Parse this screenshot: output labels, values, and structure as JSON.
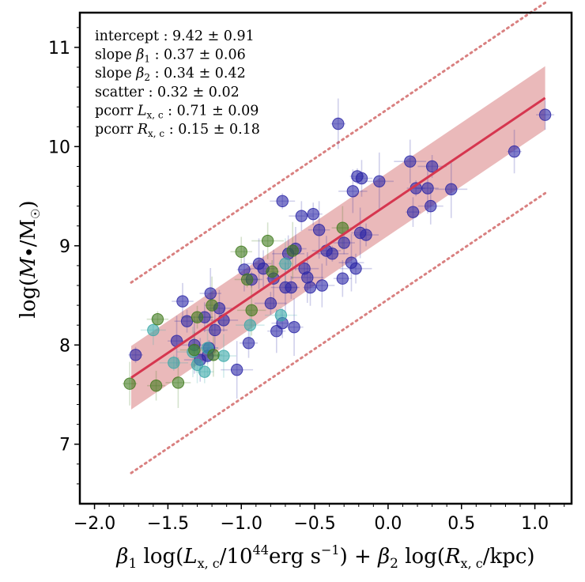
{
  "chart_data": {
    "type": "scatter",
    "title": "",
    "xlabel": "β₁ log(L_x,c/10⁴⁴erg s⁻¹) + β₂ log(R_x,c/kpc)",
    "ylabel": "log(M•/M☉)",
    "xlim": [
      -2.1,
      1.25
    ],
    "ylim": [
      6.4,
      11.35
    ],
    "x_ticks": [
      -2.0,
      -1.5,
      -1.0,
      -0.5,
      0.0,
      0.5,
      1.0
    ],
    "x_tick_labels": [
      "−2.0",
      "−1.5",
      "−1.0",
      "−0.5",
      "0.0",
      "0.5",
      "1.0"
    ],
    "y_ticks": [
      7,
      8,
      9,
      10,
      11
    ],
    "y_tick_labels": [
      "7",
      "8",
      "9",
      "10",
      "11"
    ],
    "grid": false,
    "fit": {
      "intercept": 9.42,
      "x_range": [
        -1.75,
        1.07
      ],
      "band_halfwidth": 0.32,
      "outer_offset": 0.96,
      "line_color": "#d6364f",
      "band_color": "#e3a2a3",
      "dotted_color": "#d98080"
    },
    "stats": [
      {
        "label": "intercept",
        "sym": "",
        "sub": "",
        "value": "9.42 ± 0.91"
      },
      {
        "label": "slope ",
        "sym": "β",
        "sub": "1",
        "value": "0.37 ± 0.06"
      },
      {
        "label": "slope ",
        "sym": "β",
        "sub": "2",
        "value": "0.34 ± 0.42"
      },
      {
        "label": "scatter",
        "sym": "",
        "sub": "",
        "value": "0.32 ± 0.02"
      },
      {
        "label": "pcorr ",
        "sym": "L",
        "sub": "x, c",
        "value": "0.71 ± 0.09"
      },
      {
        "label": "pcorr ",
        "sym": "R",
        "sub": "x, c",
        "value": "0.15 ± 0.18"
      }
    ],
    "series": [
      {
        "color": "#2b27a6",
        "points": [
          [
            -1.72,
            7.9
          ],
          [
            -1.44,
            8.04
          ],
          [
            -1.4,
            8.44
          ],
          [
            -1.37,
            8.24
          ],
          [
            -1.32,
            8.0
          ],
          [
            -1.28,
            7.85
          ],
          [
            -1.25,
            8.28
          ],
          [
            -1.22,
            7.97
          ],
          [
            -1.21,
            8.52
          ],
          [
            -1.15,
            8.37
          ],
          [
            -1.12,
            8.25
          ],
          [
            -1.03,
            7.75
          ],
          [
            -0.98,
            8.76
          ],
          [
            -0.95,
            8.02
          ],
          [
            -0.93,
            8.66
          ],
          [
            -0.88,
            8.82
          ],
          [
            -0.85,
            8.77
          ],
          [
            -0.8,
            8.42
          ],
          [
            -0.78,
            8.67
          ],
          [
            -0.76,
            8.14
          ],
          [
            -0.72,
            8.22
          ],
          [
            -0.72,
            9.45
          ],
          [
            -0.7,
            8.58
          ],
          [
            -0.68,
            8.92
          ],
          [
            -0.66,
            8.58
          ],
          [
            -0.64,
            8.18
          ],
          [
            -0.63,
            8.97
          ],
          [
            -0.59,
            9.3
          ],
          [
            -0.57,
            8.77
          ],
          [
            -0.55,
            8.68
          ],
          [
            -0.53,
            8.58
          ],
          [
            -0.51,
            9.32
          ],
          [
            -0.47,
            9.16
          ],
          [
            -0.45,
            8.6
          ],
          [
            -0.42,
            8.95
          ],
          [
            -0.38,
            8.92
          ],
          [
            -0.34,
            10.23
          ],
          [
            -0.31,
            8.67
          ],
          [
            -0.3,
            9.03
          ],
          [
            -0.25,
            8.83
          ],
          [
            -0.24,
            9.55
          ],
          [
            -0.22,
            8.77
          ],
          [
            -0.21,
            9.7
          ],
          [
            -0.19,
            9.13
          ],
          [
            -0.18,
            9.68
          ],
          [
            -0.15,
            9.11
          ],
          [
            -0.06,
            9.65
          ],
          [
            0.15,
            9.85
          ],
          [
            0.17,
            9.34
          ],
          [
            0.19,
            9.58
          ],
          [
            0.27,
            9.58
          ],
          [
            0.29,
            9.4
          ],
          [
            0.3,
            9.8
          ],
          [
            0.43,
            9.57
          ],
          [
            0.86,
            9.95
          ],
          [
            1.07,
            10.32
          ],
          [
            -1.23,
            7.89
          ],
          [
            -1.18,
            8.15
          ]
        ]
      },
      {
        "color": "#3aa8a8",
        "points": [
          [
            -1.6,
            8.15
          ],
          [
            -1.46,
            7.82
          ],
          [
            -1.33,
            7.93
          ],
          [
            -1.3,
            7.8
          ],
          [
            -1.25,
            7.73
          ],
          [
            -1.23,
            7.97
          ],
          [
            -1.12,
            7.89
          ],
          [
            -0.94,
            8.2
          ],
          [
            -0.73,
            8.3
          ],
          [
            -0.7,
            8.82
          ]
        ]
      },
      {
        "color": "#3f7a1c",
        "points": [
          [
            -1.76,
            7.61
          ],
          [
            -1.58,
            7.59
          ],
          [
            -1.57,
            8.26
          ],
          [
            -1.43,
            7.62
          ],
          [
            -1.32,
            7.95
          ],
          [
            -1.3,
            8.28
          ],
          [
            -1.2,
            8.4
          ],
          [
            -1.19,
            7.9
          ],
          [
            -1.0,
            8.94
          ],
          [
            -0.96,
            8.66
          ],
          [
            -0.93,
            8.35
          ],
          [
            -0.82,
            9.05
          ],
          [
            -0.79,
            8.74
          ],
          [
            -0.65,
            8.95
          ],
          [
            -0.31,
            9.18
          ]
        ]
      }
    ]
  }
}
